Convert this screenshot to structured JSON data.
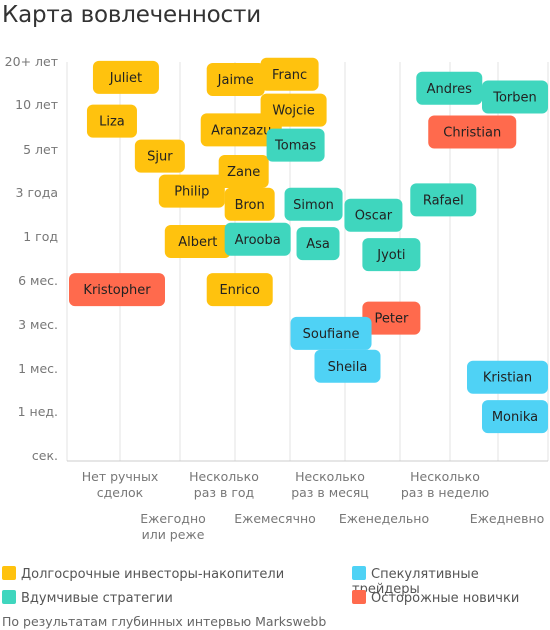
{
  "title": "Карта вовлеченности",
  "source": "По результатам глубинных интервью Markswebb",
  "colors": {
    "long_term": "#FFC20E",
    "thoughtful": "#3FD6BE",
    "speculative": "#4FD2F5",
    "cautious": "#FF6A4D",
    "grid": "#e3e3e3",
    "axis": "#cccccc"
  },
  "legend": [
    {
      "key": "long_term",
      "label": "Долгосрочные инвесторы-накопители"
    },
    {
      "key": "speculative",
      "label": "Спекулятивные трейдеры"
    },
    {
      "key": "thoughtful",
      "label": "Вдумчивые стратегии"
    },
    {
      "key": "cautious",
      "label": "Осторожные новички"
    }
  ],
  "chart_data": {
    "type": "scatter",
    "title": "Карта вовлеченности",
    "y_categories": [
      "20+ лет",
      "10 лет",
      "5 лет",
      "3 года",
      "1 год",
      "6 мес.",
      "3 мес.",
      "1 мес.",
      "1 нед.",
      "сек."
    ],
    "x_categories_top": [
      "Нет ручных сделок",
      "Несколько раз в год",
      "Несколько раз в месяц",
      "Несколько раз в неделю"
    ],
    "x_categories_bottom": [
      "Ежегодно или реже",
      "Ежемесячно",
      "Еженедельно",
      "Ежедневно"
    ],
    "x_range": [
      0,
      8
    ],
    "y_range": [
      0,
      9
    ],
    "grid": true,
    "legend_position": "bottom",
    "points": [
      {
        "name": "Juliet",
        "group": "long_term",
        "x": 0.4,
        "y": 0.35
      },
      {
        "name": "Jaime",
        "group": "long_term",
        "x": 2.3,
        "y": 0.4
      },
      {
        "name": "Franc",
        "group": "long_term",
        "x": 3.2,
        "y": 0.28
      },
      {
        "name": "Liza",
        "group": "long_term",
        "x": 0.3,
        "y": 1.35
      },
      {
        "name": "Aranzazu",
        "group": "long_term",
        "x": 2.2,
        "y": 1.55
      },
      {
        "name": "Wojcie",
        "group": "long_term",
        "x": 3.2,
        "y": 1.1
      },
      {
        "name": "Sjur",
        "group": "long_term",
        "x": 1.1,
        "y": 2.15
      },
      {
        "name": "Zane",
        "group": "long_term",
        "x": 2.5,
        "y": 2.5
      },
      {
        "name": "Philip",
        "group": "long_term",
        "x": 1.5,
        "y": 2.95
      },
      {
        "name": "Bron",
        "group": "long_term",
        "x": 2.6,
        "y": 3.25
      },
      {
        "name": "Albert",
        "group": "long_term",
        "x": 1.6,
        "y": 4.1
      },
      {
        "name": "Enrico",
        "group": "long_term",
        "x": 2.3,
        "y": 5.2
      },
      {
        "name": "Tomas",
        "group": "thoughtful",
        "x": 3.3,
        "y": 1.9
      },
      {
        "name": "Simon",
        "group": "thoughtful",
        "x": 3.6,
        "y": 3.25
      },
      {
        "name": "Arooba",
        "group": "thoughtful",
        "x": 2.6,
        "y": 4.05
      },
      {
        "name": "Asa",
        "group": "thoughtful",
        "x": 3.8,
        "y": 4.15
      },
      {
        "name": "Oscar",
        "group": "thoughtful",
        "x": 4.6,
        "y": 3.5
      },
      {
        "name": "Jyoti",
        "group": "thoughtful",
        "x": 4.9,
        "y": 4.4
      },
      {
        "name": "Rafael",
        "group": "thoughtful",
        "x": 5.7,
        "y": 3.15
      },
      {
        "name": "Andres",
        "group": "thoughtful",
        "x": 5.8,
        "y": 0.6
      },
      {
        "name": "Torben",
        "group": "thoughtful",
        "x": 7.1,
        "y": 0.8
      },
      {
        "name": "Kristopher",
        "group": "cautious",
        "x": 0.0,
        "y": 5.2
      },
      {
        "name": "Peter",
        "group": "cautious",
        "x": 4.9,
        "y": 5.85
      },
      {
        "name": "Christian",
        "group": "cautious",
        "x": 6.0,
        "y": 1.6
      },
      {
        "name": "Soufiane",
        "group": "speculative",
        "x": 3.7,
        "y": 6.2
      },
      {
        "name": "Sheila",
        "group": "speculative",
        "x": 4.1,
        "y": 6.95
      },
      {
        "name": "Kristian",
        "group": "speculative",
        "x": 7.6,
        "y": 7.2
      },
      {
        "name": "Monika",
        "group": "speculative",
        "x": 7.5,
        "y": 8.1
      }
    ]
  }
}
